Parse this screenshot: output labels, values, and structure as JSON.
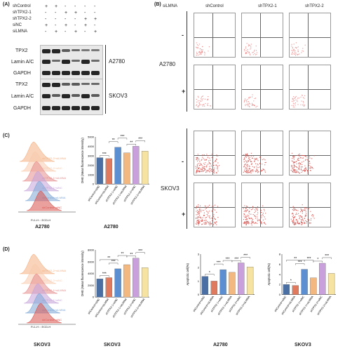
{
  "panelA": {
    "letter": "(A)",
    "conditions": [
      "shControl",
      "shTPX2-1",
      "shTPX2-2",
      "siNC",
      "siLMNA"
    ],
    "plus_minus": [
      [
        "+",
        "+",
        "-",
        "-",
        "-",
        "-"
      ],
      [
        "-",
        "-",
        "+",
        "+",
        "-",
        "-"
      ],
      [
        "-",
        "-",
        "-",
        "-",
        "+",
        "+"
      ],
      [
        "+",
        "-",
        "+",
        "-",
        "+",
        "-"
      ],
      [
        "-",
        "+",
        "-",
        "+",
        "-",
        "+"
      ]
    ],
    "blot_rows": [
      "TPX2",
      "Lamin A/C",
      "GAPDH",
      "TPX2",
      "Lamin A/C",
      "GAPDH"
    ],
    "cell_lines": [
      "A2780",
      "SKOV3"
    ]
  },
  "panelB": {
    "letter": "(B)",
    "column_headers": [
      "siLMNA",
      "shControl",
      "shTPX2-1",
      "shTPX2-2"
    ],
    "row_labels": [
      "A2780",
      "SKOV3"
    ],
    "signs": [
      "-",
      "+",
      "-",
      "+"
    ]
  },
  "panelC": {
    "letter": "(C)",
    "legend": [
      "shTPX2-2+siLMNA",
      "shTPX2-2+siNC",
      "shTPX2-1+siLMNA",
      "shTPX2-1+siNC",
      "shControl+siLMNA",
      "shControl+siNC"
    ],
    "legend_colors": [
      "#f4b183",
      "#f8cbad",
      "#e58c8c",
      "#c5a3d8",
      "#7fa7d6",
      "#d9534f"
    ],
    "xaxis": "FL1-H :: ECD-H",
    "hist_caption": "A2780",
    "bar_caption": "A2780",
    "ylabel": "DHE (Mean fluorescence intensity)"
  },
  "panelD": {
    "letter": "(D)",
    "legend": [
      "shTPX2-2+siLMNA",
      "shTPX2-2+siNC",
      "shTPX2-1+siLMNA",
      "shTPX2-1+siNC",
      "shControl+siLMNA",
      "shControl+siNC"
    ],
    "xaxis": "FL1-H :: ECD-H",
    "hist_caption": "SKOV3",
    "bar_caption": "SKOV3",
    "ylabel": "DHE (Mean fluorescence intensity)",
    "apop_ylabel": "Apoptotic cell(%)",
    "apop_captions": [
      "A2780",
      "SKOV3"
    ]
  },
  "chart_data": [
    {
      "id": "dhe-a2780",
      "type": "bar",
      "categories": [
        "shControl+siNC",
        "shControl+siLMNA",
        "shTPX2-1+siNC",
        "shTPX2-1+siLMNA",
        "shTPX2-2+siNC",
        "shTPX2-2+siLMNA"
      ],
      "values": [
        2800,
        2700,
        3900,
        3300,
        4000,
        3500
      ],
      "ylim": [
        0,
        5000
      ],
      "ticks": [
        "0",
        "1000",
        "2000",
        "3000",
        "4000",
        "5000"
      ],
      "colors": [
        "#4a6fa5",
        "#e07a5f",
        "#5b8fd1",
        "#f2b880",
        "#c9a0dc",
        "#f6e3a1"
      ],
      "sig": [
        "***",
        "**",
        "***",
        "**",
        "***"
      ]
    },
    {
      "id": "dhe-skov3",
      "type": "bar",
      "categories": [
        "shControl+siNC",
        "shControl+siLMNA",
        "shTPX2-1+siNC",
        "shTPX2-1+siLMNA",
        "shTPX2-2+siNC",
        "shTPX2-2+siLMNA"
      ],
      "values": [
        3100,
        3300,
        4800,
        5500,
        6600,
        5000
      ],
      "ylim": [
        0,
        8000
      ],
      "ticks": [
        "0",
        "2000",
        "4000",
        "6000",
        "8000"
      ],
      "colors": [
        "#4a6fa5",
        "#e07a5f",
        "#5b8fd1",
        "#f2b880",
        "#c9a0dc",
        "#f6e3a1"
      ],
      "sig": [
        "***",
        "***",
        "**",
        "**",
        "***",
        "**"
      ]
    },
    {
      "id": "apop-a2780",
      "type": "bar",
      "categories": [
        "shControl+siNC",
        "shControl+siLMNA",
        "shTPX2-1+siNC",
        "shTPX2-1+siLMNA",
        "shTPX2-2+siNC",
        "shTPX2-2+siLMNA"
      ],
      "values": [
        1.35,
        1.0,
        1.85,
        1.65,
        2.35,
        2.05
      ],
      "ylim": [
        0,
        3
      ],
      "ticks": [
        "0",
        "1",
        "2",
        "3"
      ],
      "colors": [
        "#4a6fa5",
        "#e07a5f",
        "#5b8fd1",
        "#f2b880",
        "#c9a0dc",
        "#f6e3a1"
      ],
      "sig": [
        "*",
        "***",
        "***",
        "***",
        "***"
      ]
    },
    {
      "id": "apop-skov3",
      "type": "bar",
      "categories": [
        "shControl+siNC",
        "shControl+siLMNA",
        "shTPX2-1+siNC",
        "shTPX2-1+siLMNA",
        "shTPX2-2+siNC",
        "shTPX2-2+siLMNA"
      ],
      "values": [
        2.0,
        1.8,
        5.0,
        3.3,
        6.2,
        4.2
      ],
      "ylim": [
        0,
        8
      ],
      "ticks": [
        "0",
        "2",
        "4",
        "6",
        "8"
      ],
      "colors": [
        "#4a6fa5",
        "#e07a5f",
        "#5b8fd1",
        "#f2b880",
        "#c9a0dc",
        "#f6e3a1"
      ],
      "sig": [
        "*",
        "***",
        "***",
        "*",
        "***",
        "**"
      ]
    }
  ]
}
